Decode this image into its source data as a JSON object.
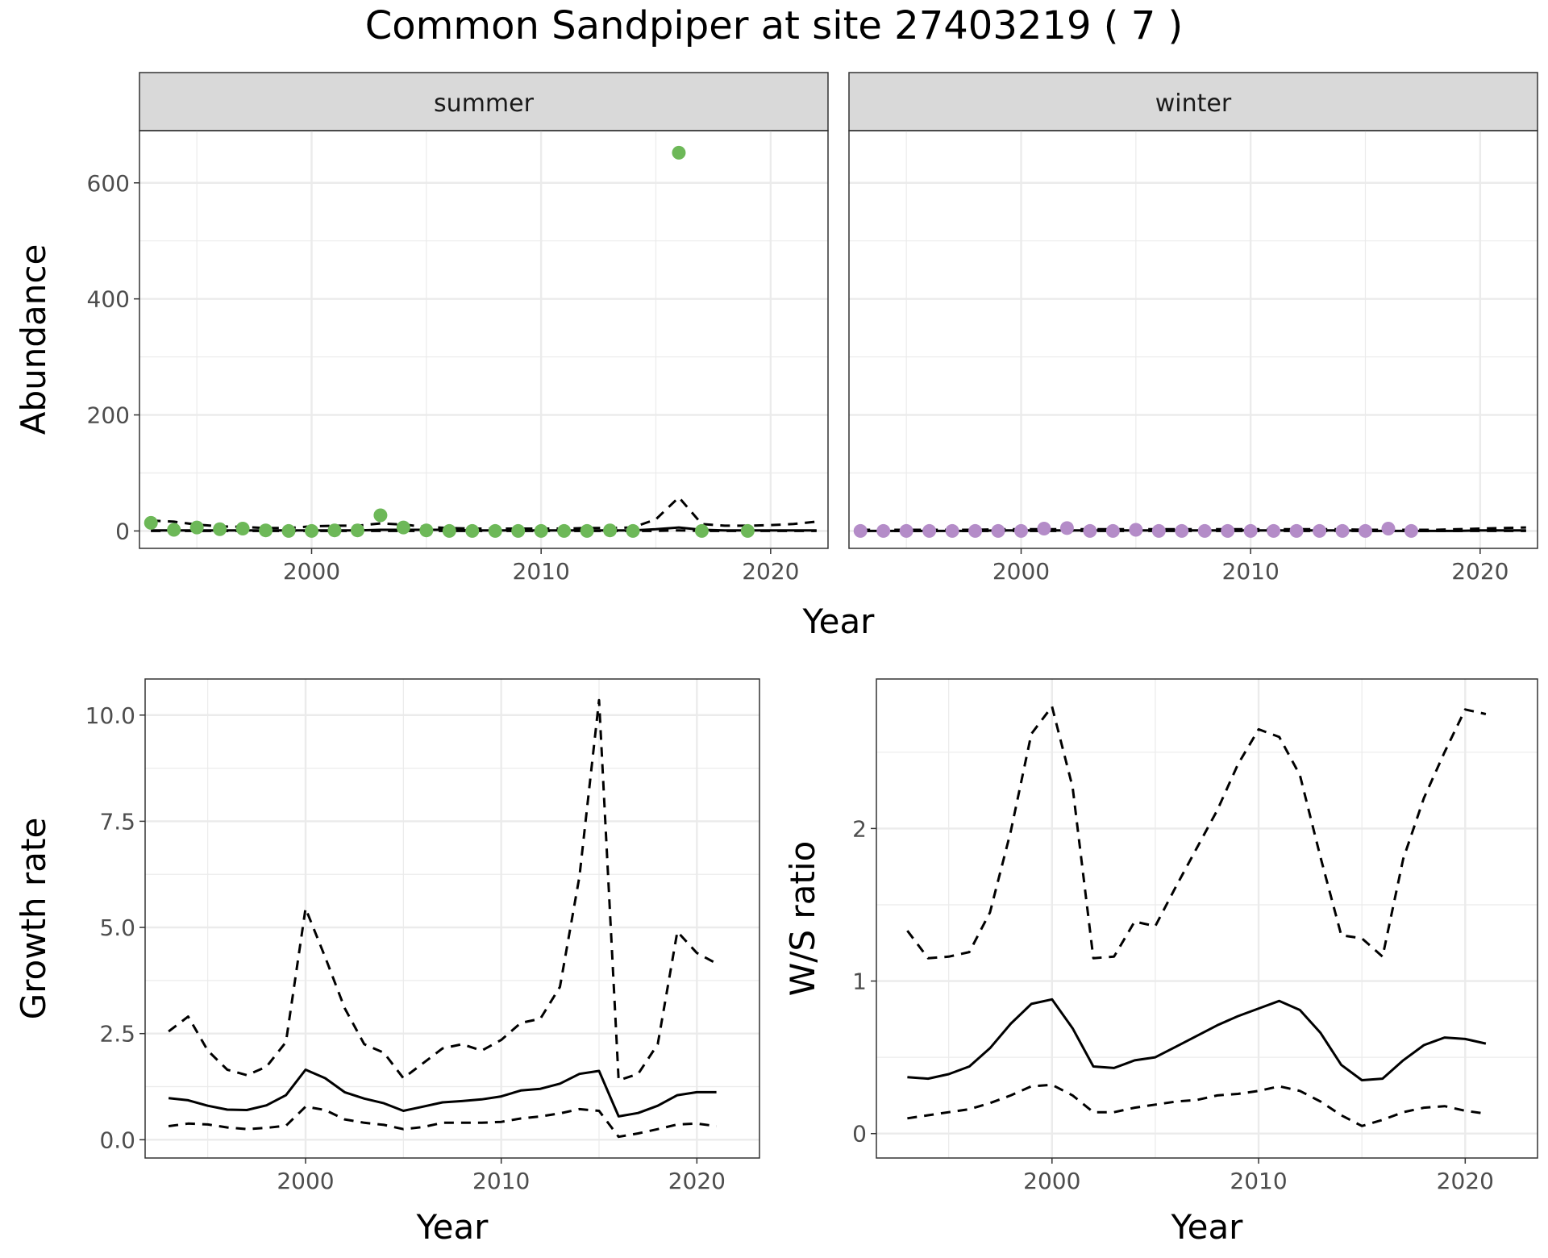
{
  "title": "Common Sandpiper at site 27403219 ( 7 )",
  "colors": {
    "summer": "#6db858",
    "winter": "#b48cc8",
    "strip_bg": "#d9d9d9",
    "grid": "#ebebeb",
    "line": "#000000"
  },
  "chart_data": [
    {
      "type": "scatter",
      "facet": "summer",
      "strip_label": "summer",
      "xlabel": "Year",
      "ylabel": "Abundance",
      "xlim": [
        1992.5,
        2022.5
      ],
      "ylim": [
        -30,
        690
      ],
      "x_ticks": [
        2000,
        2010,
        2020
      ],
      "x_tick_labels": [
        "2000",
        "2010",
        "2020"
      ],
      "y_ticks": [
        0,
        200,
        400,
        600
      ],
      "y_tick_labels": [
        "0",
        "200",
        "400",
        "600"
      ],
      "points": {
        "x": [
          1993,
          1994,
          1995,
          1996,
          1997,
          1998,
          1999,
          2000,
          2001,
          2002,
          2003,
          2004,
          2005,
          2006,
          2007,
          2008,
          2009,
          2010,
          2011,
          2012,
          2013,
          2014,
          2016,
          2017,
          2019
        ],
        "y": [
          14,
          2,
          6,
          3,
          4,
          1,
          0,
          0,
          1,
          1,
          27,
          6,
          1,
          0,
          0,
          0,
          0,
          0,
          0,
          0,
          1,
          0,
          652,
          0,
          0
        ]
      },
      "fit": {
        "x": [
          1993,
          1994,
          1995,
          1996,
          1997,
          1998,
          1999,
          2000,
          2001,
          2002,
          2003,
          2004,
          2005,
          2006,
          2007,
          2008,
          2009,
          2010,
          2011,
          2012,
          2013,
          2014,
          2015,
          2016,
          2017,
          2018,
          2019,
          2020,
          2021,
          2022
        ],
        "y": [
          1,
          1,
          1,
          1,
          1,
          1,
          1,
          1,
          1,
          1,
          2,
          2,
          2,
          2,
          1,
          1,
          1,
          1,
          1,
          1,
          1,
          1,
          3,
          6,
          2,
          1,
          1,
          1,
          1,
          1
        ]
      },
      "upper": {
        "x": [
          1993,
          1994,
          1995,
          1996,
          1997,
          1998,
          1999,
          2000,
          2001,
          2002,
          2003,
          2004,
          2005,
          2006,
          2007,
          2008,
          2009,
          2010,
          2011,
          2012,
          2013,
          2014,
          2015,
          2016,
          2017,
          2018,
          2019,
          2020,
          2021,
          2022
        ],
        "y": [
          18,
          16,
          11,
          8,
          7,
          5,
          5,
          8,
          9,
          9,
          13,
          11,
          7,
          5,
          4,
          4,
          4,
          4,
          4,
          5,
          5,
          6,
          20,
          58,
          12,
          9,
          9,
          10,
          12,
          16
        ]
      },
      "lower": {
        "x": [
          1993,
          1994,
          1995,
          1996,
          1997,
          1998,
          1999,
          2000,
          2001,
          2002,
          2003,
          2004,
          2005,
          2006,
          2007,
          2008,
          2009,
          2010,
          2011,
          2012,
          2013,
          2014,
          2015,
          2016,
          2017,
          2018,
          2019,
          2020,
          2021,
          2022
        ],
        "y": [
          0,
          0,
          0,
          0,
          0,
          0,
          0,
          0,
          0,
          0,
          0,
          0,
          0,
          0,
          0,
          0,
          0,
          0,
          0,
          0,
          0,
          0,
          0,
          1,
          0,
          0,
          0,
          0,
          0,
          0
        ]
      }
    },
    {
      "type": "scatter",
      "facet": "winter",
      "strip_label": "winter",
      "xlabel": "Year",
      "ylabel": "Abundance",
      "xlim": [
        1992.5,
        2022.5
      ],
      "ylim": [
        -30,
        690
      ],
      "x_ticks": [
        2000,
        2010,
        2020
      ],
      "x_tick_labels": [
        "2000",
        "2010",
        "2020"
      ],
      "points": {
        "x": [
          1993,
          1994,
          1995,
          1996,
          1997,
          1998,
          1999,
          2000,
          2001,
          2002,
          2003,
          2004,
          2005,
          2006,
          2007,
          2008,
          2009,
          2010,
          2011,
          2012,
          2013,
          2014,
          2015,
          2016,
          2017
        ],
        "y": [
          0,
          0,
          0,
          0,
          0,
          0,
          0,
          0,
          4,
          5,
          0,
          0,
          2,
          0,
          0,
          0,
          0,
          0,
          0,
          0,
          0,
          0,
          0,
          4,
          0
        ]
      },
      "fit": {
        "x": [
          1993,
          1994,
          1995,
          1996,
          1997,
          1998,
          1999,
          2000,
          2001,
          2002,
          2003,
          2004,
          2005,
          2006,
          2007,
          2008,
          2009,
          2010,
          2011,
          2012,
          2013,
          2014,
          2015,
          2016,
          2017,
          2018,
          2019,
          2020,
          2021,
          2022
        ],
        "y": [
          0,
          0,
          0,
          0,
          0,
          0,
          1,
          1,
          1,
          1,
          1,
          1,
          1,
          1,
          1,
          1,
          1,
          1,
          1,
          1,
          1,
          1,
          0,
          0,
          0,
          0,
          0,
          1,
          1,
          1
        ]
      },
      "upper": {
        "x": [
          1993,
          1994,
          1995,
          1996,
          1997,
          1998,
          1999,
          2000,
          2001,
          2002,
          2003,
          2004,
          2005,
          2006,
          2007,
          2008,
          2009,
          2010,
          2011,
          2012,
          2013,
          2014,
          2015,
          2016,
          2017,
          2018,
          2019,
          2020,
          2021,
          2022
        ],
        "y": [
          2,
          2,
          2,
          2,
          2,
          2,
          3,
          3,
          3,
          3,
          3,
          3,
          3,
          3,
          3,
          3,
          3,
          3,
          3,
          3,
          3,
          3,
          2,
          2,
          2,
          2,
          3,
          4,
          5,
          6
        ]
      },
      "lower": {
        "x": [
          1993,
          1994,
          1995,
          1996,
          1997,
          1998,
          1999,
          2000,
          2001,
          2002,
          2003,
          2004,
          2005,
          2006,
          2007,
          2008,
          2009,
          2010,
          2011,
          2012,
          2013,
          2014,
          2015,
          2016,
          2017,
          2018,
          2019,
          2020,
          2021,
          2022
        ],
        "y": [
          0,
          0,
          0,
          0,
          0,
          0,
          0,
          0,
          0,
          0,
          0,
          0,
          0,
          0,
          0,
          0,
          0,
          0,
          0,
          0,
          0,
          0,
          0,
          0,
          0,
          0,
          0,
          0,
          0,
          0
        ]
      }
    },
    {
      "type": "line",
      "xlabel": "Year",
      "ylabel": "Growth rate",
      "xlim": [
        1991.8,
        2023.2
      ],
      "ylim": [
        -0.43,
        10.85
      ],
      "x_ticks": [
        2000,
        2010,
        2020
      ],
      "x_tick_labels": [
        "2000",
        "2010",
        "2020"
      ],
      "y_ticks": [
        0,
        2.5,
        5,
        7.5,
        10
      ],
      "y_tick_labels": [
        "0.0",
        "2.5",
        "5.0",
        "7.5",
        "10.0"
      ],
      "x": [
        1993,
        1994,
        1995,
        1996,
        1997,
        1998,
        1999,
        2000,
        2001,
        2002,
        2003,
        2004,
        2005,
        2006,
        2007,
        2008,
        2009,
        2010,
        2011,
        2012,
        2013,
        2014,
        2015,
        2016,
        2017,
        2018,
        2019,
        2020,
        2021
      ],
      "median": [
        0.98,
        0.93,
        0.8,
        0.71,
        0.7,
        0.81,
        1.05,
        1.65,
        1.45,
        1.12,
        0.97,
        0.86,
        0.68,
        0.78,
        0.88,
        0.91,
        0.95,
        1.02,
        1.16,
        1.2,
        1.32,
        1.55,
        1.62,
        0.55,
        0.63,
        0.8,
        1.05,
        1.12,
        1.12
      ],
      "upper": [
        2.55,
        2.9,
        2.1,
        1.65,
        1.52,
        1.72,
        2.3,
        5.45,
        4.3,
        3.1,
        2.25,
        2.05,
        1.45,
        1.8,
        2.15,
        2.25,
        2.1,
        2.35,
        2.75,
        2.85,
        3.6,
        6.2,
        10.35,
        1.4,
        1.55,
        2.25,
        4.9,
        4.4,
        4.15
      ],
      "lower": [
        0.32,
        0.38,
        0.36,
        0.29,
        0.25,
        0.28,
        0.33,
        0.78,
        0.7,
        0.48,
        0.4,
        0.35,
        0.25,
        0.3,
        0.4,
        0.4,
        0.4,
        0.42,
        0.5,
        0.55,
        0.62,
        0.72,
        0.68,
        0.07,
        0.15,
        0.25,
        0.36,
        0.38,
        0.32
      ]
    },
    {
      "type": "line",
      "xlabel": "Year",
      "ylabel": "W/S ratio",
      "xlim": [
        1991.5,
        2023.5
      ],
      "ylim": [
        -0.16,
        2.98
      ],
      "x_ticks": [
        2000,
        2010,
        2020
      ],
      "x_tick_labels": [
        "2000",
        "2010",
        "2020"
      ],
      "y_ticks": [
        0,
        1,
        2
      ],
      "y_tick_labels": [
        "0",
        "1",
        "2"
      ],
      "x": [
        1993,
        1994,
        1995,
        1996,
        1997,
        1998,
        1999,
        2000,
        2001,
        2002,
        2003,
        2004,
        2005,
        2006,
        2007,
        2008,
        2009,
        2010,
        2011,
        2012,
        2013,
        2014,
        2015,
        2016,
        2017,
        2018,
        2019,
        2020,
        2021
      ],
      "median": [
        0.37,
        0.36,
        0.39,
        0.44,
        0.56,
        0.72,
        0.85,
        0.88,
        0.69,
        0.44,
        0.43,
        0.48,
        0.5,
        0.57,
        0.64,
        0.71,
        0.77,
        0.82,
        0.87,
        0.81,
        0.66,
        0.45,
        0.35,
        0.36,
        0.48,
        0.58,
        0.63,
        0.62,
        0.59
      ],
      "upper": [
        1.33,
        1.15,
        1.16,
        1.19,
        1.45,
        1.98,
        2.62,
        2.8,
        2.27,
        1.15,
        1.16,
        1.39,
        1.36,
        1.62,
        1.87,
        2.12,
        2.42,
        2.65,
        2.6,
        2.35,
        1.81,
        1.3,
        1.28,
        1.16,
        1.8,
        2.2,
        2.5,
        2.78,
        2.75
      ],
      "lower": [
        0.1,
        0.12,
        0.14,
        0.16,
        0.2,
        0.25,
        0.31,
        0.32,
        0.25,
        0.14,
        0.14,
        0.17,
        0.19,
        0.21,
        0.22,
        0.25,
        0.26,
        0.28,
        0.31,
        0.28,
        0.21,
        0.12,
        0.05,
        0.09,
        0.14,
        0.17,
        0.18,
        0.15,
        0.13
      ]
    }
  ]
}
